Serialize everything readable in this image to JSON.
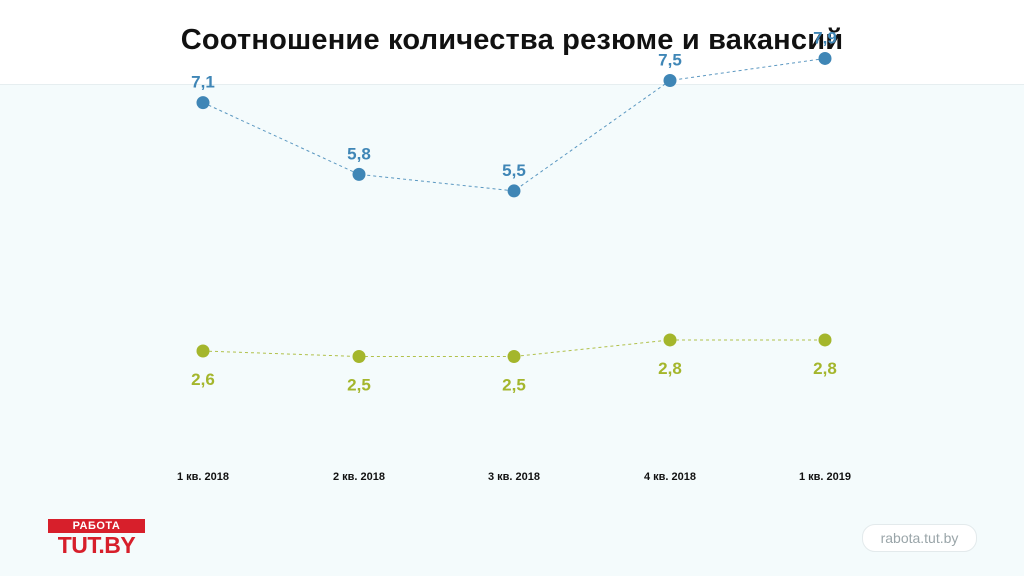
{
  "title": "Соотношение количества резюме и вакансий",
  "logo": {
    "top_text": "РАБОТА",
    "bottom_text": "TUT.BY"
  },
  "site": "rabota.tut.by",
  "colors": {
    "series_blue": "#3f86b6",
    "series_green": "#a4b62c",
    "text_dark": "#111111"
  },
  "chart_data": {
    "type": "line",
    "title": "Соотношение количества резюме и вакансий",
    "categories": [
      "1 кв. 2018",
      "2 кв. 2018",
      "3 кв. 2018",
      "4 кв. 2018",
      "1 кв. 2019"
    ],
    "series": [
      {
        "name": "series-1",
        "color": "#3f86b6",
        "values": [
          7.1,
          5.8,
          5.5,
          7.5,
          7.9
        ],
        "labels": [
          "7,1",
          "5,8",
          "5,5",
          "7,5",
          "7,9"
        ],
        "label_position": "above"
      },
      {
        "name": "series-2",
        "color": "#a4b62c",
        "values": [
          2.6,
          2.5,
          2.5,
          2.8,
          2.8
        ],
        "labels": [
          "2,6",
          "2,5",
          "2,5",
          "2,8",
          "2,8"
        ],
        "label_position": "below"
      }
    ],
    "xlabel": "",
    "ylabel": "",
    "grid": false,
    "legend": "none"
  }
}
